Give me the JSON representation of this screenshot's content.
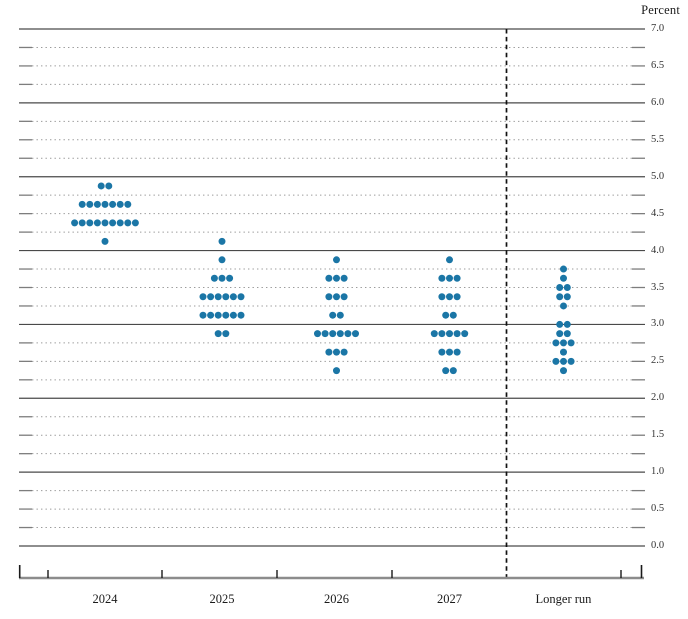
{
  "chart_data": {
    "type": "scatter",
    "subtype": "fomc-dot-plot",
    "title": "",
    "xlabel": "",
    "ylabel": "Percent",
    "ylim": [
      0.0,
      7.0
    ],
    "grid_step": 0.25,
    "y_tick_step": 0.5,
    "legend": "none",
    "grid": "on",
    "y_tick_labels": [
      "7.0",
      "6.5",
      "6.0",
      "5.5",
      "5.0",
      "4.5",
      "4.0",
      "3.5",
      "3.0",
      "2.5",
      "2.0",
      "1.5",
      "1.0",
      "0.5",
      "0.0"
    ],
    "categories": [
      "2024",
      "2025",
      "2026",
      "2027",
      "Longer run"
    ],
    "series": [
      {
        "category": "2024",
        "dots": [
          {
            "rate": 4.875,
            "count": 2
          },
          {
            "rate": 4.625,
            "count": 7
          },
          {
            "rate": 4.375,
            "count": 9
          },
          {
            "rate": 4.125,
            "count": 1
          }
        ]
      },
      {
        "category": "2025",
        "dots": [
          {
            "rate": 4.125,
            "count": 1
          },
          {
            "rate": 3.875,
            "count": 1
          },
          {
            "rate": 3.625,
            "count": 3
          },
          {
            "rate": 3.375,
            "count": 6
          },
          {
            "rate": 3.125,
            "count": 6
          },
          {
            "rate": 2.875,
            "count": 2
          }
        ]
      },
      {
        "category": "2026",
        "dots": [
          {
            "rate": 3.875,
            "count": 1
          },
          {
            "rate": 3.625,
            "count": 3
          },
          {
            "rate": 3.375,
            "count": 3
          },
          {
            "rate": 3.125,
            "count": 2
          },
          {
            "rate": 2.875,
            "count": 6
          },
          {
            "rate": 2.625,
            "count": 3
          },
          {
            "rate": 2.375,
            "count": 1
          }
        ]
      },
      {
        "category": "2027",
        "dots": [
          {
            "rate": 3.875,
            "count": 1
          },
          {
            "rate": 3.625,
            "count": 3
          },
          {
            "rate": 3.375,
            "count": 3
          },
          {
            "rate": 3.125,
            "count": 2
          },
          {
            "rate": 2.875,
            "count": 5
          },
          {
            "rate": 2.625,
            "count": 3
          },
          {
            "rate": 2.375,
            "count": 2
          }
        ]
      },
      {
        "category": "Longer run",
        "dots": [
          {
            "rate": 3.75,
            "count": 1
          },
          {
            "rate": 3.625,
            "count": 1
          },
          {
            "rate": 3.5,
            "count": 2
          },
          {
            "rate": 3.375,
            "count": 2
          },
          {
            "rate": 3.25,
            "count": 1
          },
          {
            "rate": 3.0,
            "count": 2
          },
          {
            "rate": 2.875,
            "count": 2
          },
          {
            "rate": 2.75,
            "count": 3
          },
          {
            "rate": 2.625,
            "count": 1
          },
          {
            "rate": 2.5,
            "count": 3
          },
          {
            "rate": 2.375,
            "count": 1
          }
        ]
      }
    ]
  },
  "colors": {
    "dot": "#1B76A6",
    "grid_major": "#4a4a4a",
    "grid_minor": "#9a9a9a",
    "grid_leader": "#7d7d7d",
    "axis_line": "#8c8c8c",
    "tick": "#1a1a1a",
    "separator": "#111111",
    "text": "#1a1a1a",
    "background": "#ffffff"
  }
}
